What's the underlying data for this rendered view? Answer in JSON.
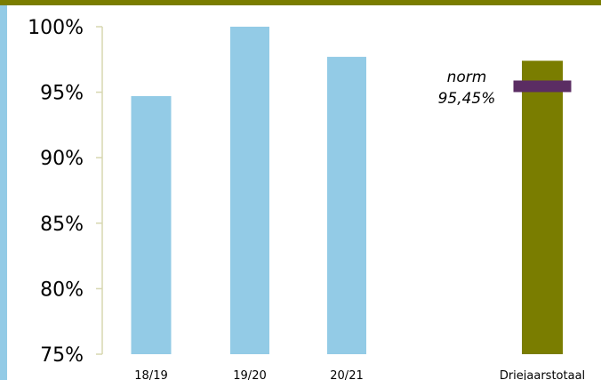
{
  "colors": {
    "top_band": "#7a7d00",
    "left_band": "#93cbe6",
    "bar_primary": "#93cbe6",
    "bar_total": "#7a7d00",
    "norm_marker": "#5b2d63",
    "axis": "#d7d7b0"
  },
  "chart_data": {
    "type": "bar",
    "categories": [
      "18/19",
      "19/20",
      "20/21",
      "Driejaarstotaal"
    ],
    "values": [
      94.7,
      100.0,
      97.7,
      97.4
    ],
    "ylim": [
      75,
      100
    ],
    "yticks": [
      75,
      80,
      85,
      90,
      95,
      100
    ],
    "ytick_labels": [
      "75%",
      "80%",
      "85%",
      "90%",
      "95%",
      "100%"
    ],
    "title": "",
    "xlabel": "",
    "ylabel": "",
    "grid": false,
    "norm": {
      "value": 95.45,
      "label_line1": "norm",
      "label_line2": "95,45%",
      "category": "Driejaarstotaal"
    }
  }
}
